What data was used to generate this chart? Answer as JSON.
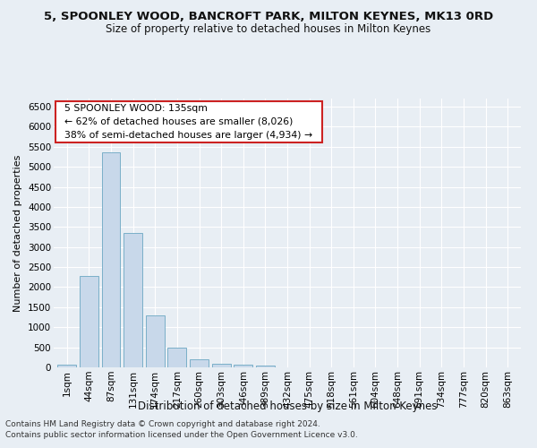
{
  "title": "5, SPOONLEY WOOD, BANCROFT PARK, MILTON KEYNES, MK13 0RD",
  "subtitle": "Size of property relative to detached houses in Milton Keynes",
  "xlabel": "Distribution of detached houses by size in Milton Keynes",
  "ylabel": "Number of detached properties",
  "footer_line1": "Contains HM Land Registry data © Crown copyright and database right 2024.",
  "footer_line2": "Contains public sector information licensed under the Open Government Licence v3.0.",
  "categories": [
    "1sqm",
    "44sqm",
    "87sqm",
    "131sqm",
    "174sqm",
    "217sqm",
    "260sqm",
    "303sqm",
    "346sqm",
    "389sqm",
    "432sqm",
    "475sqm",
    "518sqm",
    "561sqm",
    "604sqm",
    "648sqm",
    "691sqm",
    "734sqm",
    "777sqm",
    "820sqm",
    "863sqm"
  ],
  "values": [
    75,
    2280,
    5350,
    3360,
    1290,
    490,
    195,
    95,
    60,
    50,
    0,
    0,
    0,
    0,
    0,
    0,
    0,
    0,
    0,
    0,
    0
  ],
  "bar_color": "#c8d8ea",
  "bar_edge_color": "#7aafc8",
  "annotation_title": "5 SPOONLEY WOOD: 135sqm",
  "annotation_line2": "← 62% of detached houses are smaller (8,026)",
  "annotation_line3": "38% of semi-detached houses are larger (4,934) →",
  "annotation_box_facecolor": "#ffffff",
  "annotation_box_edgecolor": "#cc2222",
  "ylim": [
    0,
    6700
  ],
  "yticks": [
    0,
    500,
    1000,
    1500,
    2000,
    2500,
    3000,
    3500,
    4000,
    4500,
    5000,
    5500,
    6000,
    6500
  ],
  "bg_color": "#e8eef4",
  "plot_bg_color": "#e8eef4",
  "grid_color": "#ffffff",
  "title_fontsize": 9.5,
  "subtitle_fontsize": 8.5,
  "xlabel_fontsize": 8.5,
  "ylabel_fontsize": 8.0,
  "tick_fontsize": 7.5,
  "annotation_fontsize": 7.8,
  "footer_fontsize": 6.5
}
